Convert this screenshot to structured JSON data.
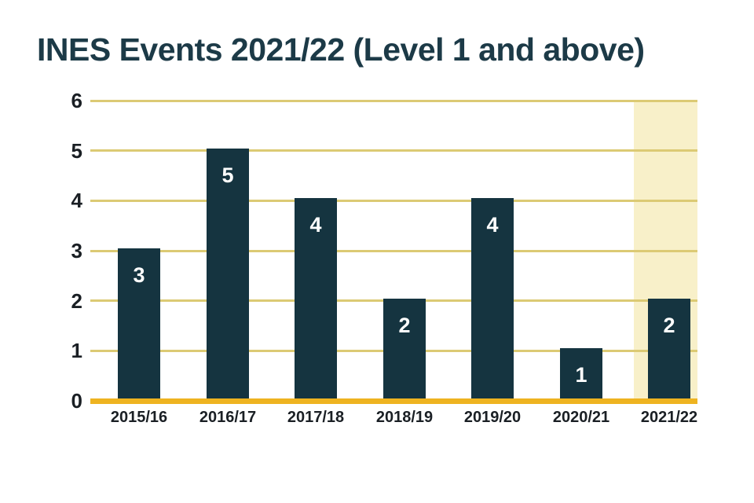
{
  "title": "INES Events 2021/22 (Level 1 and above)",
  "colors": {
    "background": "#ffffff",
    "title_text": "#1c3a47",
    "tick_label_text": "#1a1f24",
    "bar_fill": "#153440",
    "bar_value_text": "#ffffff",
    "gridline": "#dcca74",
    "axis_line": "#eeb320",
    "highlight_band": "#f8f0c9"
  },
  "chart_data": {
    "type": "bar",
    "title": "INES Events 2021/22 (Level 1 and above)",
    "categories": [
      "2015/16",
      "2016/17",
      "2017/18",
      "2018/19",
      "2019/20",
      "2020/21",
      "2021/22"
    ],
    "values": [
      3,
      5,
      4,
      2,
      4,
      1,
      2
    ],
    "bar_value_labels": [
      "3",
      "5",
      "4",
      "2",
      "4",
      "1",
      "2"
    ],
    "y_ticks": [
      0,
      1,
      2,
      3,
      4,
      5,
      6
    ],
    "ylim": [
      0,
      6
    ],
    "xlabel": "",
    "ylabel": "",
    "grid": "horizontal gridlines only",
    "legend_position": "none",
    "highlighted_category": "2021/22",
    "highlight_note": "2021/22 column has a pale cream background band"
  }
}
